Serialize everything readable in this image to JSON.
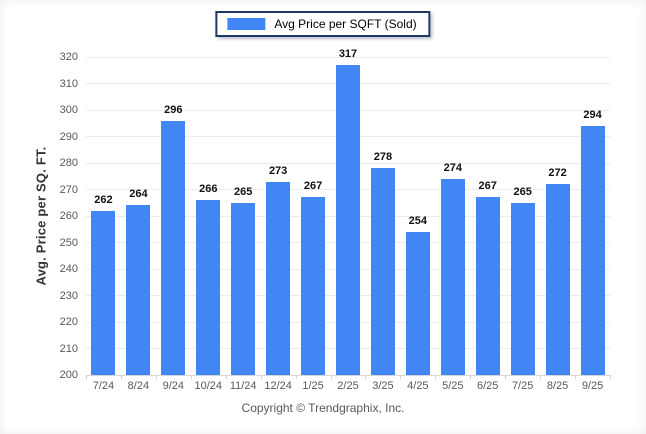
{
  "legend": {
    "label": "Avg Price per SQFT (Sold)",
    "swatch_color": "#4285f4",
    "border_color": "#1f3864"
  },
  "footer": {
    "copyright": "Copyright © Trendgraphix, Inc."
  },
  "colors": {
    "bar": "#4285f4",
    "gridline": "#ececec",
    "axis_line": "#d6d6d6",
    "tick_text": "#595959",
    "value_text": "#111111"
  },
  "chart_data": {
    "type": "bar",
    "title": "",
    "series_name": "Avg Price per SQFT (Sold)",
    "categories": [
      "7/24",
      "8/24",
      "9/24",
      "10/24",
      "11/24",
      "12/24",
      "1/25",
      "2/25",
      "3/25",
      "4/25",
      "5/25",
      "6/25",
      "7/25",
      "8/25",
      "9/25"
    ],
    "values": [
      262,
      264,
      296,
      266,
      265,
      273,
      267,
      317,
      278,
      254,
      274,
      267,
      265,
      272,
      294
    ],
    "xlabel": "",
    "ylabel": "Avg. Price per SQ. FT.",
    "ylim": [
      200,
      320
    ],
    "ytick_step": 10,
    "grid": true,
    "legend_position": "top",
    "value_labels": true
  }
}
